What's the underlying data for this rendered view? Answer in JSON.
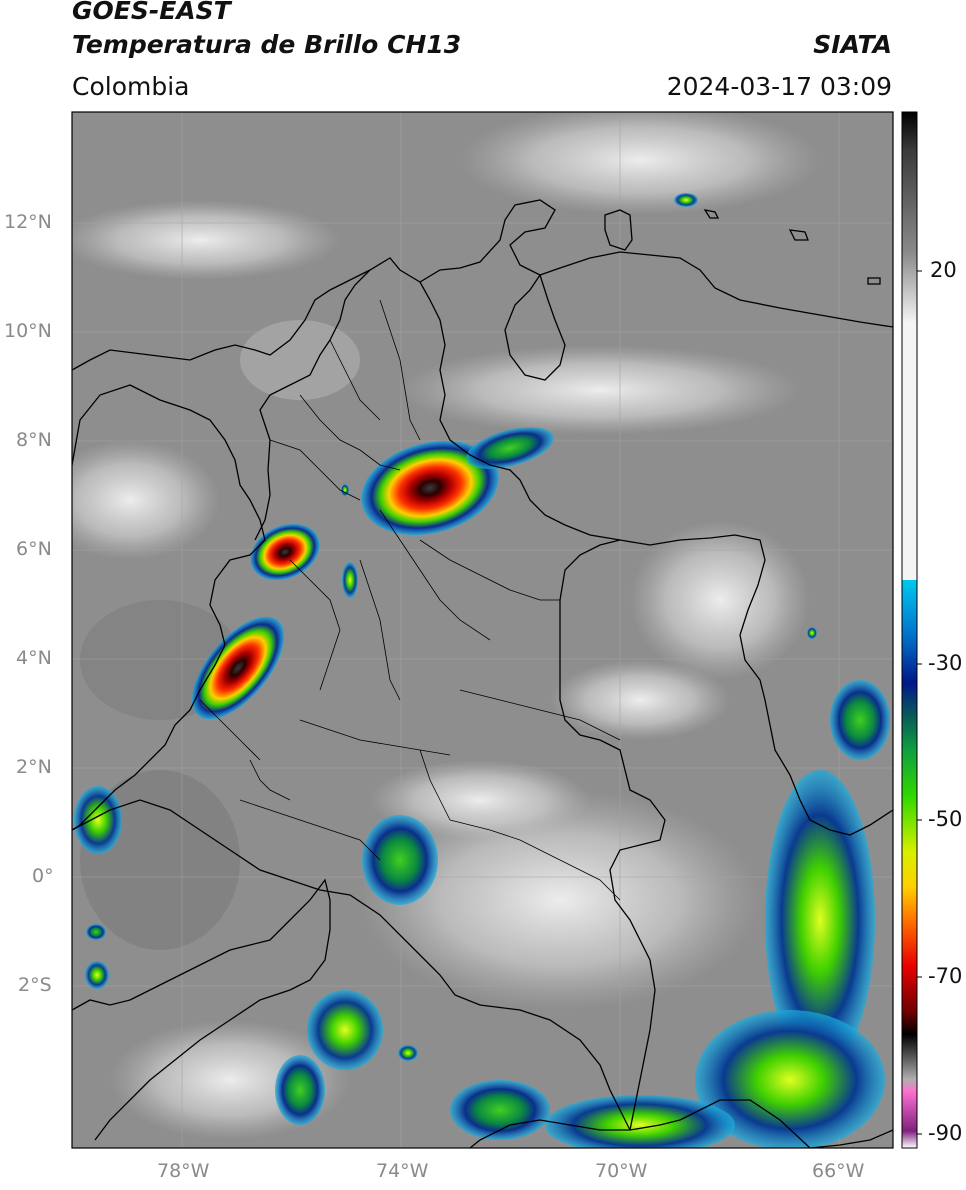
{
  "header": {
    "line1": "GOES-EAST",
    "line2": "Temperatura de Brillo CH13",
    "region": "Colombia",
    "brand": "SIATA",
    "datetime": "2024-03-17 03:09"
  },
  "map": {
    "lon_range": [
      -80,
      -65
    ],
    "lat_range": [
      -5,
      14
    ],
    "lat_ticks": [
      "12°N",
      "10°N",
      "8°N",
      "6°N",
      "4°N",
      "2°N",
      "0°",
      "2°S"
    ],
    "lon_ticks": [
      "78°W",
      "74°W",
      "70°W",
      "66°W"
    ],
    "grid": true,
    "colors": {
      "background_gray": "#8c8c8c",
      "border": "#000000",
      "grid": "#a0a0a0"
    }
  },
  "colorbar": {
    "ticks": [
      "20",
      "-30",
      "-50",
      "-70",
      "-90"
    ]
  }
}
